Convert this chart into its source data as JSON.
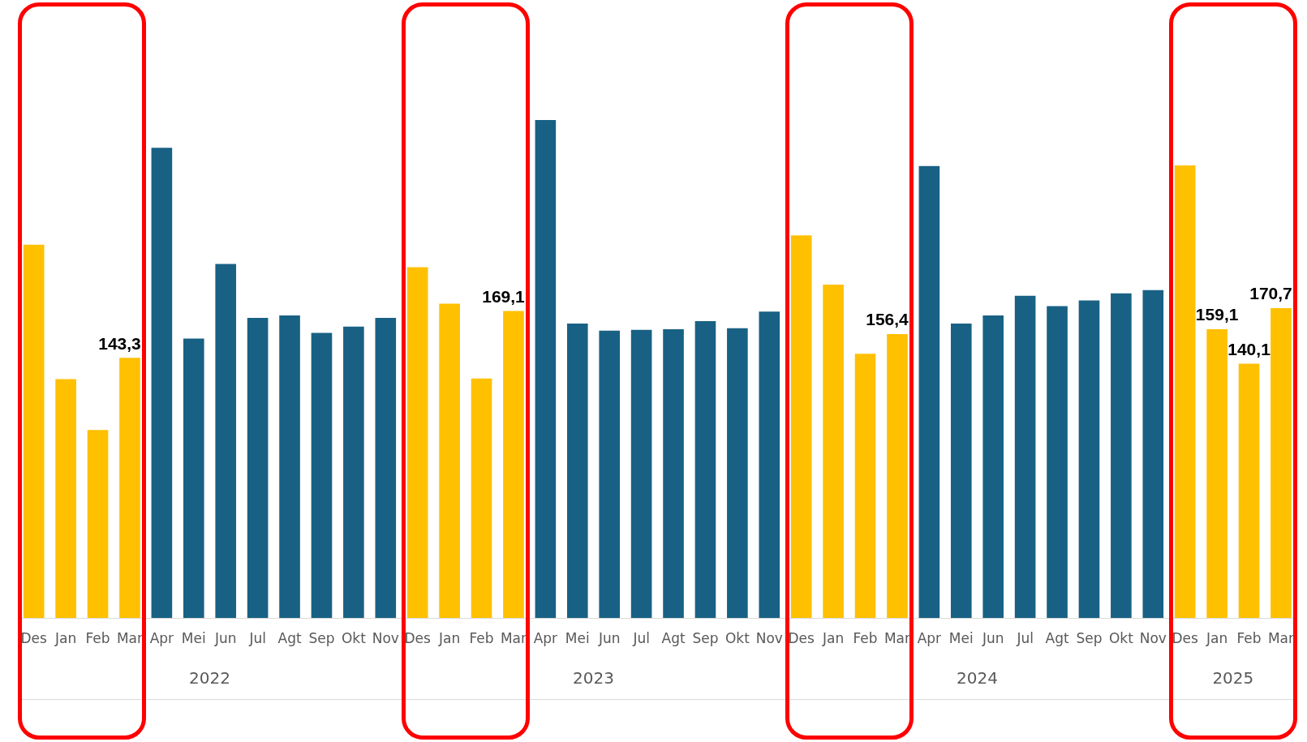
{
  "chart_data": {
    "type": "bar",
    "categories": [
      "Des",
      "Jan",
      "Feb",
      "Mar",
      "Apr",
      "Mei",
      "Jun",
      "Jul",
      "Agt",
      "Sep",
      "Okt",
      "Nov",
      "Des",
      "Jan",
      "Feb",
      "Mar",
      "Apr",
      "Mei",
      "Jun",
      "Jul",
      "Agt",
      "Sep",
      "Okt",
      "Nov",
      "Des",
      "Jan",
      "Feb",
      "Mar",
      "Apr",
      "Mei",
      "Jun",
      "Jul",
      "Agt",
      "Sep",
      "Okt",
      "Nov",
      "Des",
      "Jan",
      "Feb",
      "Mar"
    ],
    "values": [
      205.5,
      131.6,
      103.6,
      143.3,
      258.8,
      153.9,
      195,
      165.3,
      166.6,
      157,
      160.5,
      165.3,
      193.2,
      173.1,
      132,
      169.1,
      274.1,
      162.2,
      158.3,
      158.7,
      159.1,
      163.5,
      159.6,
      168.8,
      210.7,
      183.6,
      145.6,
      156.4,
      248.8,
      162.2,
      166.6,
      177.5,
      171.8,
      174.9,
      178.8,
      180.6,
      249.2,
      159.1,
      140.1,
      170.7
    ],
    "colors": [
      "#ffc000",
      "#ffc000",
      "#ffc000",
      "#ffc000",
      "#186184",
      "#186184",
      "#186184",
      "#186184",
      "#186184",
      "#186184",
      "#186184",
      "#186184",
      "#ffc000",
      "#ffc000",
      "#ffc000",
      "#ffc000",
      "#186184",
      "#186184",
      "#186184",
      "#186184",
      "#186184",
      "#186184",
      "#186184",
      "#186184",
      "#ffc000",
      "#ffc000",
      "#ffc000",
      "#ffc000",
      "#186184",
      "#186184",
      "#186184",
      "#186184",
      "#186184",
      "#186184",
      "#186184",
      "#186184",
      "#ffc000",
      "#ffc000",
      "#ffc000",
      "#ffc000"
    ],
    "value_labels": [
      null,
      null,
      null,
      "143,3",
      null,
      null,
      null,
      null,
      null,
      null,
      null,
      null,
      null,
      null,
      null,
      "169,1",
      null,
      null,
      null,
      null,
      null,
      null,
      null,
      null,
      null,
      null,
      null,
      "156,4",
      null,
      null,
      null,
      null,
      null,
      null,
      null,
      null,
      null,
      "159,1",
      "140,1",
      "170,7"
    ],
    "annotations": [
      "2022",
      "2023",
      "2024",
      "2025"
    ],
    "grid": false,
    "legend": false
  }
}
